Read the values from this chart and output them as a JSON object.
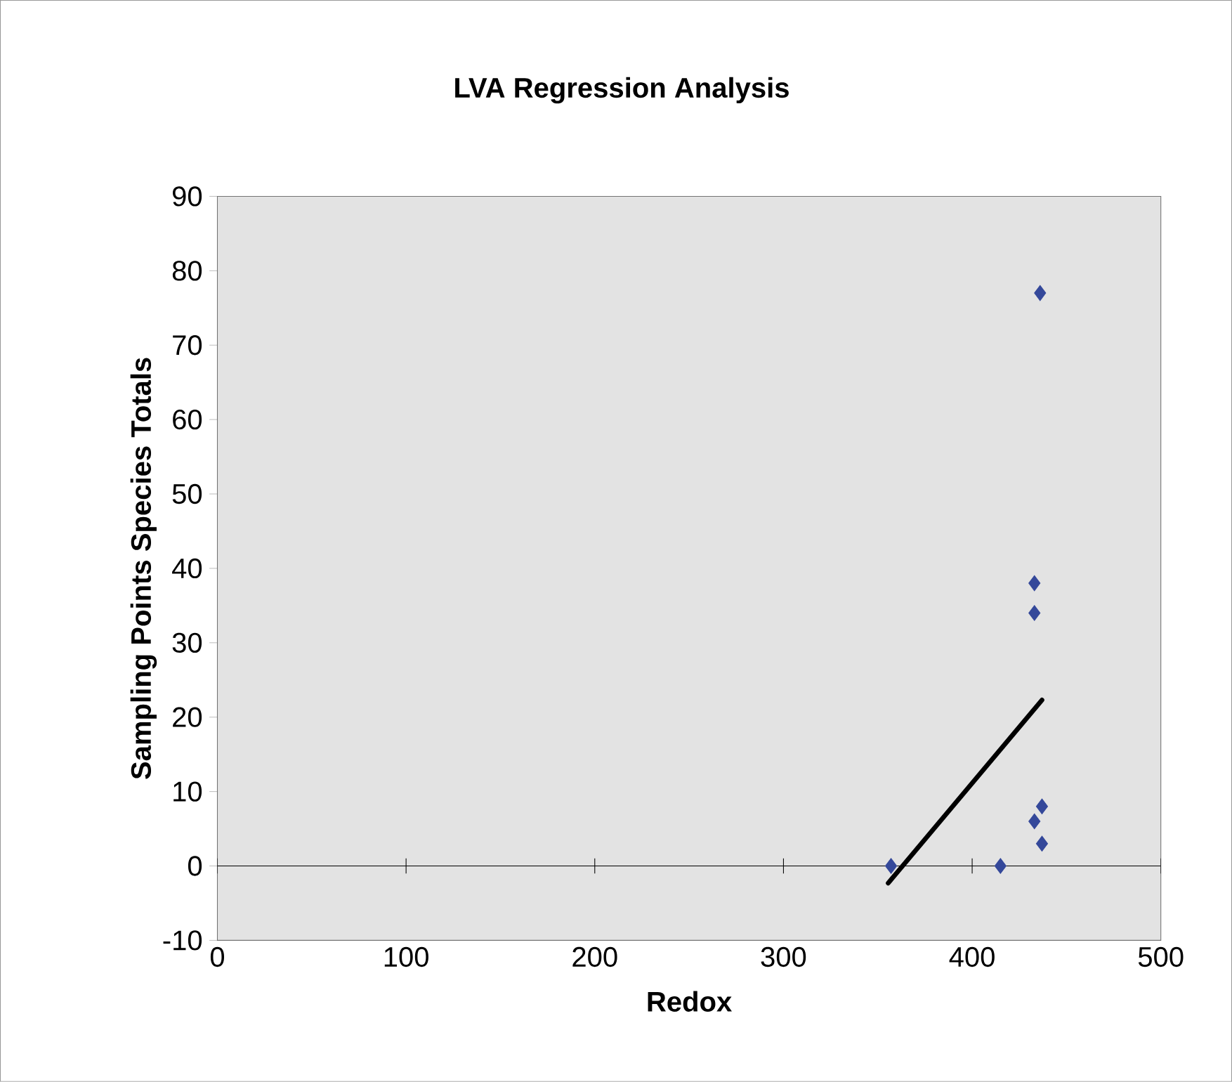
{
  "chart_data": {
    "type": "scatter",
    "title": "LVA Regression Analysis",
    "xlabel": "Redox",
    "ylabel": "Sampling Points Species Totals",
    "xlim": [
      0,
      500
    ],
    "xticks": [
      0,
      100,
      200,
      300,
      400,
      500
    ],
    "ylim": [
      -10,
      90
    ],
    "yticks": [
      -10,
      0,
      10,
      20,
      30,
      40,
      50,
      60,
      70,
      80,
      90
    ],
    "marker": "diamond",
    "grid": false,
    "ref_lines": [
      {
        "axis": "y",
        "value": 0,
        "color": "#000000"
      }
    ],
    "series": [
      {
        "color": "#34489a",
        "x": [
          357,
          415,
          436,
          433,
          433,
          437,
          433,
          437
        ],
        "values": [
          0,
          0,
          77,
          38,
          34,
          8,
          6,
          3
        ]
      },
      {
        "type": "line",
        "color": "#000000",
        "marker": "none",
        "x": [
          355.5,
          437
        ],
        "values": [
          -2.3,
          22.3
        ]
      }
    ]
  }
}
